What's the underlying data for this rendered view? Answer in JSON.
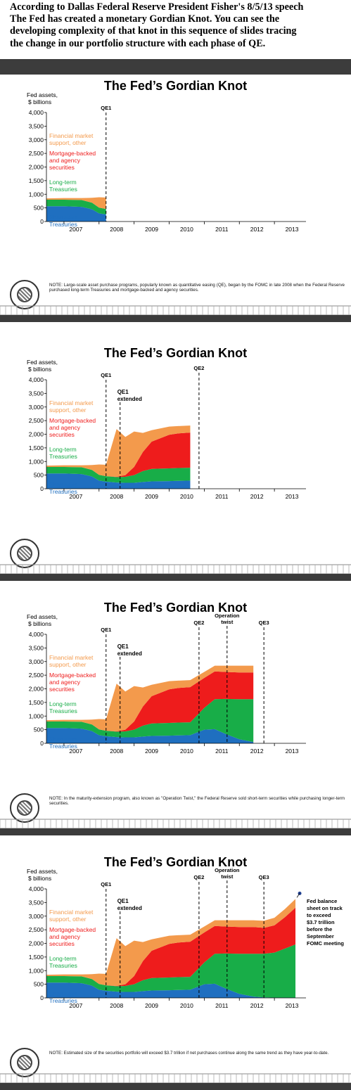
{
  "intro": {
    "line1": "According to Dallas Federal Reserve President Fisher's 8/5/13 speech",
    "line2": "The Fed has created a monetary Gordian Knot. You can see the",
    "line3": "developing complexity of that knot in this sequence of slides tracing",
    "line4": "the change in our portfolio structure with each phase of QE."
  },
  "colors": {
    "short_term": "#1f6fc0",
    "long_term": "#18ad48",
    "mbs": "#ee1c1c",
    "financial": "#f39a4c",
    "band": "#3c3c3c"
  },
  "chart_data": [
    {
      "type": "area",
      "title": "The Fed’s Gordian Knot",
      "ylabel": "Fed assets, $ billions",
      "ylim": [
        0,
        4000
      ],
      "yticks": [
        "0",
        "500",
        "1,000",
        "1,500",
        "2,000",
        "2,500",
        "3,000",
        "3,500",
        "4,000"
      ],
      "xlim": [
        2006.5,
        2013.9
      ],
      "xtick_labels": [
        "2007",
        "2008",
        "2009",
        "2010",
        "2011",
        "2012",
        "2013"
      ],
      "legend": [
        "Financial market support, other",
        "Mortgage-backed and agency securities",
        "Long-term Treasuries",
        "Short-term Treasuries"
      ],
      "series": [
        {
          "name": "Short-term Treasuries",
          "x": [
            2006.5,
            2007.0,
            2007.5,
            2007.8,
            2008.0,
            2008.2
          ],
          "values": [
            560,
            560,
            540,
            450,
            300,
            260
          ]
        },
        {
          "name": "Long-term Treasuries",
          "x": [
            2006.5,
            2007.0,
            2007.5,
            2007.8,
            2008.0,
            2008.2
          ],
          "values": [
            240,
            240,
            250,
            240,
            210,
            200
          ]
        },
        {
          "name": "Mortgage-backed and agency securities",
          "x": [
            2006.5,
            2007.0,
            2007.5,
            2007.8,
            2008.0,
            2008.2
          ],
          "values": [
            0,
            0,
            0,
            0,
            0,
            0
          ]
        },
        {
          "name": "Financial market support, other",
          "x": [
            2006.5,
            2007.0,
            2007.5,
            2007.8,
            2008.0,
            2008.2
          ],
          "values": [
            50,
            60,
            70,
            180,
            380,
            420
          ]
        }
      ],
      "annotations": [
        {
          "label": "QE1",
          "x": 2008.2
        }
      ],
      "note": "NOTE: Large-scale asset purchase programs, popularly known as quantitative easing (QE), began by the FOMC in late 2008 when the Federal Reserve purchased long-term Treasuries and mortgage-backed and agency securities."
    },
    {
      "type": "area",
      "title": "The Fed’s Gordian Knot",
      "ylabel": "Fed assets, $ billions",
      "ylim": [
        0,
        4000
      ],
      "yticks": [
        "0",
        "500",
        "1,000",
        "1,500",
        "2,000",
        "2,500",
        "3,000",
        "3,500",
        "4,000"
      ],
      "xlim": [
        2006.5,
        2013.9
      ],
      "xtick_labels": [
        "2007",
        "2008",
        "2009",
        "2010",
        "2011",
        "2012",
        "2013"
      ],
      "legend": [
        "Financial market support, other",
        "Mortgage-backed and agency securities",
        "Long-term Treasuries",
        "Short-term Treasuries"
      ],
      "series": [
        {
          "name": "Short-term Treasuries",
          "x": [
            2006.5,
            2007.0,
            2007.5,
            2007.8,
            2008.0,
            2008.2,
            2008.5,
            2008.75,
            2009.0,
            2009.25,
            2009.5,
            2010.0,
            2010.25,
            2010.6
          ],
          "values": [
            560,
            560,
            540,
            450,
            300,
            260,
            230,
            220,
            220,
            250,
            270,
            280,
            290,
            300
          ]
        },
        {
          "name": "Long-term Treasuries",
          "x": [
            2006.5,
            2007.0,
            2007.5,
            2007.8,
            2008.0,
            2008.2,
            2008.5,
            2008.75,
            2009.0,
            2009.25,
            2009.5,
            2010.0,
            2010.25,
            2010.6
          ],
          "values": [
            240,
            240,
            250,
            240,
            210,
            200,
            200,
            220,
            280,
            400,
            460,
            470,
            470,
            470
          ]
        },
        {
          "name": "Mortgage-backed and agency securities",
          "x": [
            2006.5,
            2007.0,
            2007.5,
            2007.8,
            2008.0,
            2008.2,
            2008.5,
            2008.75,
            2009.0,
            2009.25,
            2009.5,
            2010.0,
            2010.25,
            2010.6
          ],
          "values": [
            0,
            0,
            0,
            0,
            0,
            0,
            10,
            60,
            300,
            700,
            1000,
            1230,
            1270,
            1290
          ]
        },
        {
          "name": "Financial market support, other",
          "x": [
            2006.5,
            2007.0,
            2007.5,
            2007.8,
            2008.0,
            2008.2,
            2008.5,
            2008.75,
            2009.0,
            2009.25,
            2009.5,
            2010.0,
            2010.25,
            2010.6
          ],
          "values": [
            50,
            60,
            70,
            180,
            380,
            420,
            1750,
            1400,
            1300,
            700,
            420,
            300,
            270,
            260
          ]
        }
      ],
      "annotations": [
        {
          "label": "QE1",
          "x": 2008.2
        },
        {
          "label": "QE1 extended",
          "x": 2008.6
        },
        {
          "label": "QE2",
          "x": 2010.85
        }
      ],
      "note": ""
    },
    {
      "type": "area",
      "title": "The Fed’s Gordian Knot",
      "ylabel": "Fed assets, $ billions",
      "ylim": [
        0,
        4000
      ],
      "yticks": [
        "0",
        "500",
        "1,000",
        "1,500",
        "2,000",
        "2,500",
        "3,000",
        "3,500",
        "4,000"
      ],
      "xlim": [
        2006.5,
        2013.9
      ],
      "xtick_labels": [
        "2007",
        "2008",
        "2009",
        "2010",
        "2011",
        "2012",
        "2013"
      ],
      "legend": [
        "Financial market support, other",
        "Mortgage-backed and agency securities",
        "Long-term Treasuries",
        "Short-term Treasuries"
      ],
      "series": [
        {
          "name": "Short-term Treasuries",
          "x": [
            2006.5,
            2007.0,
            2007.5,
            2007.8,
            2008.0,
            2008.2,
            2008.5,
            2008.75,
            2009.0,
            2009.25,
            2009.5,
            2010.0,
            2010.25,
            2010.6,
            2011.0,
            2011.3,
            2011.6,
            2012.0,
            2012.4
          ],
          "values": [
            560,
            560,
            540,
            450,
            300,
            260,
            230,
            220,
            220,
            250,
            270,
            280,
            290,
            300,
            500,
            520,
            350,
            150,
            50
          ]
        },
        {
          "name": "Long-term Treasuries",
          "x": [
            2006.5,
            2007.0,
            2007.5,
            2007.8,
            2008.0,
            2008.2,
            2008.5,
            2008.75,
            2009.0,
            2009.25,
            2009.5,
            2010.0,
            2010.25,
            2010.6,
            2011.0,
            2011.3,
            2011.6,
            2012.0,
            2012.4
          ],
          "values": [
            240,
            240,
            250,
            240,
            210,
            200,
            200,
            220,
            280,
            400,
            460,
            470,
            470,
            470,
            800,
            1100,
            1280,
            1470,
            1570
          ]
        },
        {
          "name": "Mortgage-backed and agency securities",
          "x": [
            2006.5,
            2007.0,
            2007.5,
            2007.8,
            2008.0,
            2008.2,
            2008.5,
            2008.75,
            2009.0,
            2009.25,
            2009.5,
            2010.0,
            2010.25,
            2010.6,
            2011.0,
            2011.3,
            2011.6,
            2012.0,
            2012.4
          ],
          "values": [
            0,
            0,
            0,
            0,
            0,
            0,
            10,
            60,
            300,
            700,
            1000,
            1230,
            1270,
            1290,
            1100,
            1020,
            990,
            980,
            980
          ]
        },
        {
          "name": "Financial market support, other",
          "x": [
            2006.5,
            2007.0,
            2007.5,
            2007.8,
            2008.0,
            2008.2,
            2008.5,
            2008.75,
            2009.0,
            2009.25,
            2009.5,
            2010.0,
            2010.25,
            2010.6,
            2011.0,
            2011.3,
            2011.6,
            2012.0,
            2012.4
          ],
          "values": [
            50,
            60,
            70,
            180,
            380,
            420,
            1750,
            1400,
            1300,
            700,
            420,
            300,
            270,
            260,
            220,
            210,
            230,
            250,
            250
          ]
        }
      ],
      "annotations": [
        {
          "label": "QE1",
          "x": 2008.2
        },
        {
          "label": "QE1 extended",
          "x": 2008.6
        },
        {
          "label": "QE2",
          "x": 2010.85
        },
        {
          "label": "Operation twist",
          "x": 2011.65
        },
        {
          "label": "QE3",
          "x": 2012.7
        }
      ],
      "note": "NOTE: In the maturity-extension program, also known as \"Operation Twist,\" the Federal Reserve sold short-term securities while purchasing longer-term securities."
    },
    {
      "type": "area",
      "title": "The Fed’s Gordian Knot",
      "ylabel": "Fed assets, $ billions",
      "ylim": [
        0,
        4000
      ],
      "yticks": [
        "0",
        "500",
        "1,000",
        "1,500",
        "2,000",
        "2,500",
        "3,000",
        "3,500",
        "4,000"
      ],
      "xlim": [
        2006.5,
        2013.9
      ],
      "xtick_labels": [
        "2007",
        "2008",
        "2009",
        "2010",
        "2011",
        "2012",
        "2013"
      ],
      "legend": [
        "Financial market support, other",
        "Mortgage-backed and agency securities",
        "Long-term Treasuries",
        "Short-term Treasuries"
      ],
      "series": [
        {
          "name": "Short-term Treasuries",
          "x": [
            2006.5,
            2007.0,
            2007.5,
            2007.8,
            2008.0,
            2008.2,
            2008.5,
            2008.75,
            2009.0,
            2009.25,
            2009.5,
            2010.0,
            2010.25,
            2010.6,
            2011.0,
            2011.3,
            2011.6,
            2012.0,
            2012.4,
            2012.7,
            2013.0,
            2013.3,
            2013.6
          ],
          "values": [
            560,
            560,
            540,
            450,
            300,
            260,
            230,
            220,
            220,
            250,
            270,
            280,
            290,
            300,
            500,
            520,
            350,
            150,
            50,
            20,
            10,
            10,
            10
          ]
        },
        {
          "name": "Long-term Treasuries",
          "x": [
            2006.5,
            2007.0,
            2007.5,
            2007.8,
            2008.0,
            2008.2,
            2008.5,
            2008.75,
            2009.0,
            2009.25,
            2009.5,
            2010.0,
            2010.25,
            2010.6,
            2011.0,
            2011.3,
            2011.6,
            2012.0,
            2012.4,
            2012.7,
            2013.0,
            2013.3,
            2013.6
          ],
          "values": [
            240,
            240,
            250,
            240,
            210,
            200,
            200,
            220,
            280,
            400,
            460,
            470,
            470,
            470,
            800,
            1100,
            1280,
            1470,
            1570,
            1600,
            1650,
            1800,
            1950
          ]
        },
        {
          "name": "Mortgage-backed and agency securities",
          "x": [
            2006.5,
            2007.0,
            2007.5,
            2007.8,
            2008.0,
            2008.2,
            2008.5,
            2008.75,
            2009.0,
            2009.25,
            2009.5,
            2010.0,
            2010.25,
            2010.6,
            2011.0,
            2011.3,
            2011.6,
            2012.0,
            2012.4,
            2012.7,
            2013.0,
            2013.3,
            2013.6
          ],
          "values": [
            0,
            0,
            0,
            0,
            0,
            0,
            10,
            60,
            300,
            700,
            1000,
            1230,
            1270,
            1290,
            1100,
            1020,
            990,
            980,
            980,
            950,
            1000,
            1150,
            1350
          ]
        },
        {
          "name": "Financial market support, other",
          "x": [
            2006.5,
            2007.0,
            2007.5,
            2007.8,
            2008.0,
            2008.2,
            2008.5,
            2008.75,
            2009.0,
            2009.25,
            2009.5,
            2010.0,
            2010.25,
            2010.6,
            2011.0,
            2011.3,
            2011.6,
            2012.0,
            2012.4,
            2012.7,
            2013.0,
            2013.3,
            2013.6
          ],
          "values": [
            50,
            60,
            70,
            180,
            380,
            420,
            1750,
            1400,
            1300,
            700,
            420,
            300,
            270,
            260,
            220,
            210,
            230,
            250,
            250,
            260,
            280,
            300,
            320
          ]
        }
      ],
      "annotations": [
        {
          "label": "QE1",
          "x": 2008.2
        },
        {
          "label": "QE1 extended",
          "x": 2008.6
        },
        {
          "label": "QE2",
          "x": 2010.85
        },
        {
          "label": "Operation twist",
          "x": 2011.65
        },
        {
          "label": "QE3",
          "x": 2012.7
        }
      ],
      "callout": "Fed balance sheet on track to exceed $3.7 trillion before the September FOMC meeting",
      "note": "NOTE: Estimated size of the securities portfolio will exceed $3.7 trillion if net purchases continue along the same trend as they have year-to-date."
    }
  ]
}
